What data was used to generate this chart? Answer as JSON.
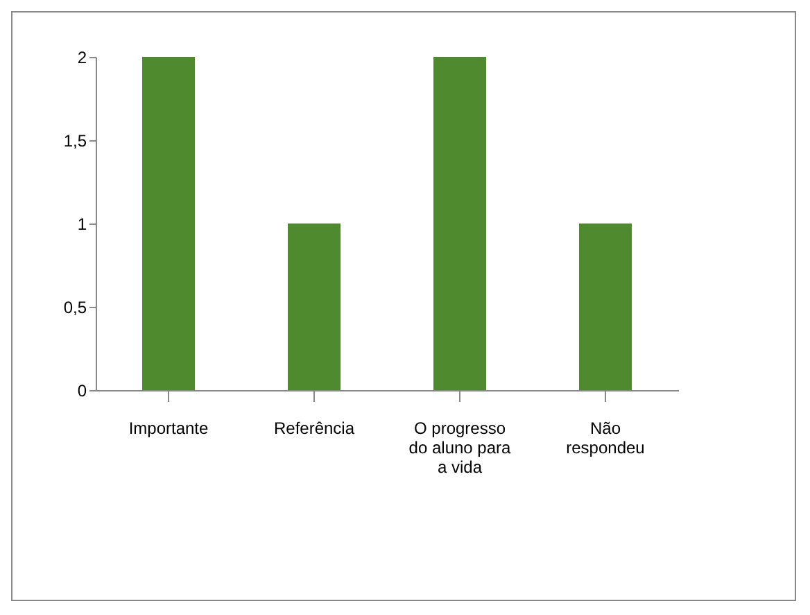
{
  "chart_data": {
    "type": "bar",
    "categories": [
      "Importante",
      "Referência",
      "O progresso do aluno para a vida",
      "Não respondeu"
    ],
    "values": [
      2,
      1,
      2,
      1
    ],
    "color": "#4f8a2f",
    "ylim": [
      0,
      2
    ],
    "yticks": [
      0,
      {
        "value": 0.5,
        "label": "0,5"
      },
      1,
      {
        "value": 1.5,
        "label": "1,5"
      },
      2
    ],
    "grid": false
  }
}
